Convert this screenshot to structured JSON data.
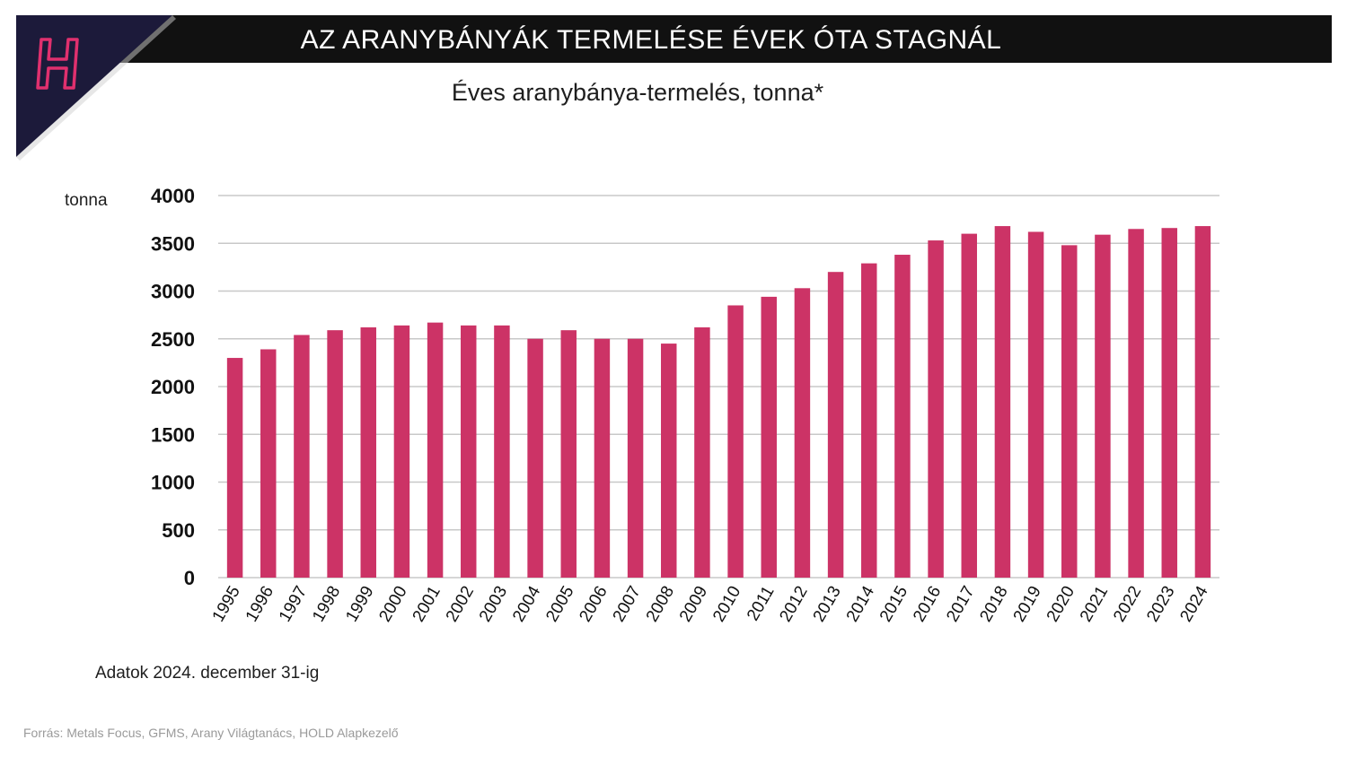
{
  "header": {
    "title": "AZ ARANYBÁNYÁK TERMELÉSE ÉVEK ÓTA STAGNÁL",
    "logo_letter": "H",
    "logo_color": "#e0306e",
    "logo_bg": "#1c1a3a"
  },
  "chart_data": {
    "type": "bar",
    "title": "Éves aranybánya-termelés, tonna*",
    "ylabel": "tonna",
    "xlabel": "",
    "ylim": [
      0,
      4000
    ],
    "yticks": [
      0,
      500,
      1000,
      1500,
      2000,
      2500,
      3000,
      3500,
      4000
    ],
    "grid": true,
    "bar_color": "#cc3366",
    "categories": [
      "1995",
      "1996",
      "1997",
      "1998",
      "1999",
      "2000",
      "2001",
      "2002",
      "2003",
      "2004",
      "2005",
      "2006",
      "2007",
      "2008",
      "2009",
      "2010",
      "2011",
      "2012",
      "2013",
      "2014",
      "2015",
      "2016",
      "2017",
      "2018",
      "2019",
      "2020",
      "2021",
      "2022",
      "2023",
      "2024"
    ],
    "values": [
      2300,
      2390,
      2540,
      2590,
      2620,
      2640,
      2670,
      2640,
      2640,
      2500,
      2590,
      2500,
      2500,
      2450,
      2620,
      2850,
      2940,
      3030,
      3200,
      3290,
      3380,
      3530,
      3600,
      3680,
      3620,
      3480,
      3590,
      3650,
      3660,
      3680
    ]
  },
  "footnote": "Adatok 2024. december 31-ig",
  "source": "Forrás: Metals Focus, GFMS, Arany Világtanács, HOLD Alapkezelő"
}
